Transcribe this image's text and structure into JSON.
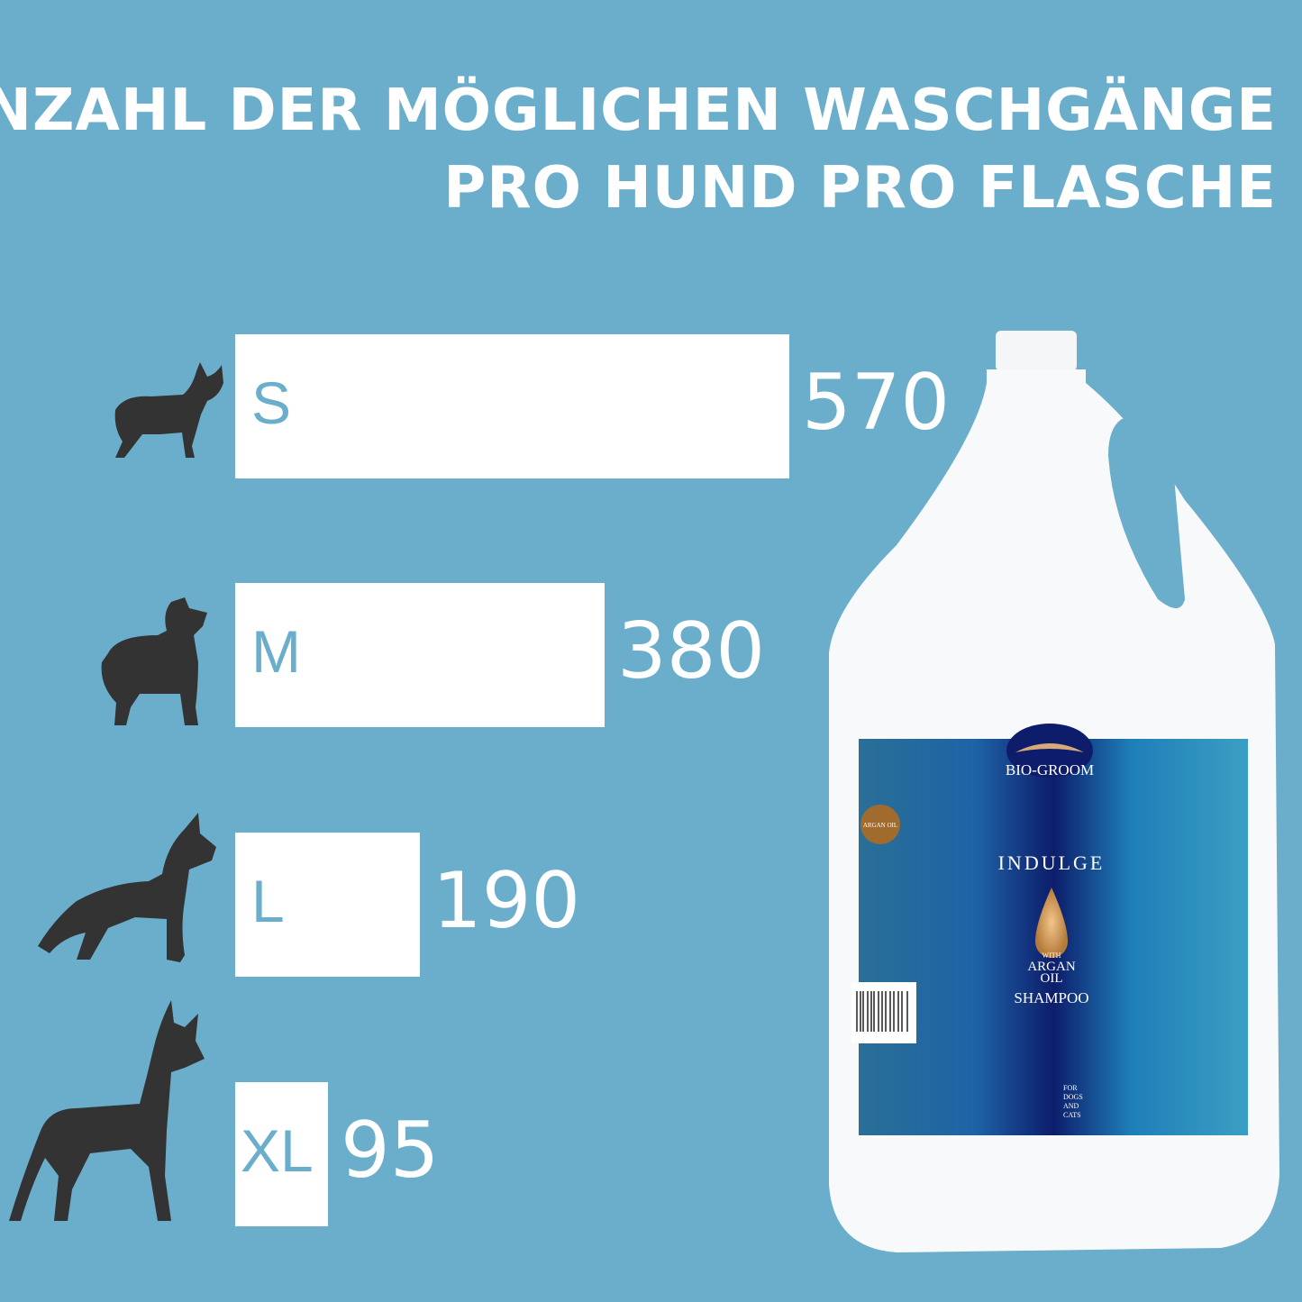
{
  "header": {
    "line1": "ANZAHL DER MÖGLICHEN WASCHGÄNGE",
    "line2": "PRO HUND PRO FLASCHE"
  },
  "colors": {
    "background": "#6aaecb",
    "bar": "#ffffff",
    "label": "#6aaecb",
    "dog": "#333333"
  },
  "chart_data": {
    "type": "bar",
    "orientation": "horizontal",
    "categories": [
      "S",
      "M",
      "L",
      "XL"
    ],
    "values": [
      570,
      380,
      190,
      95
    ],
    "category_icons": [
      "small-dog-icon",
      "medium-dog-icon",
      "large-dog-icon",
      "xl-dog-icon"
    ],
    "grid": false
  },
  "product": {
    "brand": "BIO-GROOM",
    "name": "INDULGE",
    "with": "WITH",
    "argan": "ARGAN",
    "oil": "OIL",
    "type": "SHAMPOO",
    "for": [
      "FOR",
      "DOGS",
      "AND",
      "CATS"
    ],
    "badge": "ARGAN OIL"
  }
}
